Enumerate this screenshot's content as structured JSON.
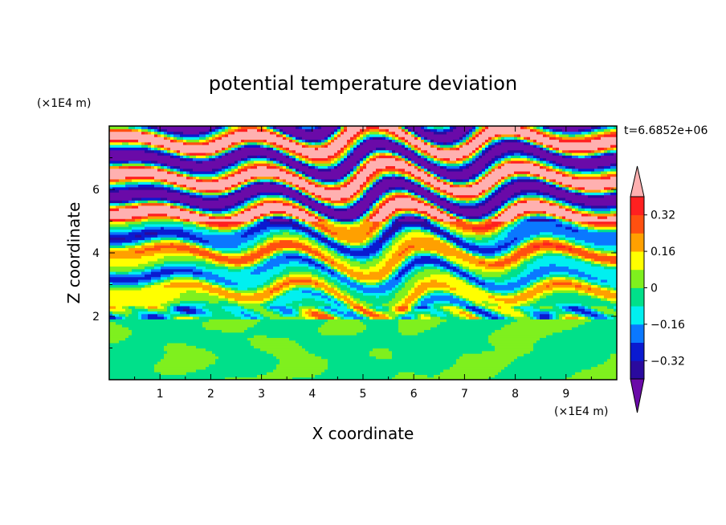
{
  "chart_data": {
    "type": "heatmap",
    "title": "potential temperature deviation",
    "xlabel": "X coordinate",
    "ylabel": "Z coordinate",
    "x_unit": "(×1E4 m)",
    "y_unit": "(×1E4 m)",
    "time_label": "t=6.6852e+06",
    "xlim": [
      0,
      10
    ],
    "ylim": [
      0,
      8
    ],
    "x_ticks": [
      1,
      2,
      3,
      4,
      5,
      6,
      7,
      8,
      9
    ],
    "y_ticks": [
      2,
      4,
      6
    ],
    "colorbar": {
      "levels": [
        -0.4,
        -0.32,
        -0.24,
        -0.16,
        -0.08,
        0,
        0.08,
        0.16,
        0.24,
        0.32,
        0.4
      ],
      "tick_values": [
        0.32,
        0.16,
        0,
        -0.16,
        -0.32
      ],
      "tick_labels": [
        "0.32",
        "0.16",
        "0",
        "−0.16",
        "−0.32"
      ],
      "colors": [
        "#6a0aa8",
        "#2a0a9e",
        "#0a1ad0",
        "#0a78ff",
        "#00f0f0",
        "#00e08a",
        "#7ff01e",
        "#ffff00",
        "#ffa000",
        "#ff5010",
        "#ff2020",
        "#ffb0b0"
      ],
      "under_color": "#6a0aa8",
      "over_color": "#ffb0b0"
    }
  }
}
